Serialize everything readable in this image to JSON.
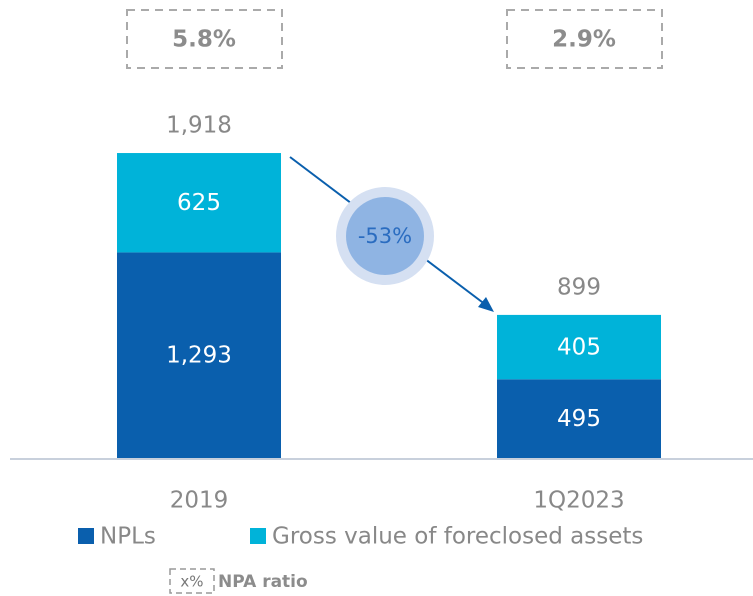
{
  "chart_data": {
    "type": "stacked-bar",
    "categories": [
      "2019",
      "1Q2023"
    ],
    "series": [
      {
        "name": "NPLs",
        "color": "#0a5fad",
        "values": [
          1293,
          495
        ],
        "value_labels": [
          "1,293",
          "495"
        ]
      },
      {
        "name": "Gross value of foreclosed assets",
        "color": "#00b3d9",
        "values": [
          625,
          405
        ]
      }
    ],
    "totals": {
      "values": [
        1918,
        899
      ],
      "value_labels": [
        "1,918",
        "899"
      ]
    },
    "npa_ratio": {
      "values": [
        5.8,
        2.9
      ],
      "value_labels": [
        "5.8%",
        "2.9%"
      ]
    },
    "change": {
      "value": -53,
      "label": "-53%"
    },
    "npa_legend": {
      "symbol": "x%",
      "label": "NPA ratio"
    }
  }
}
